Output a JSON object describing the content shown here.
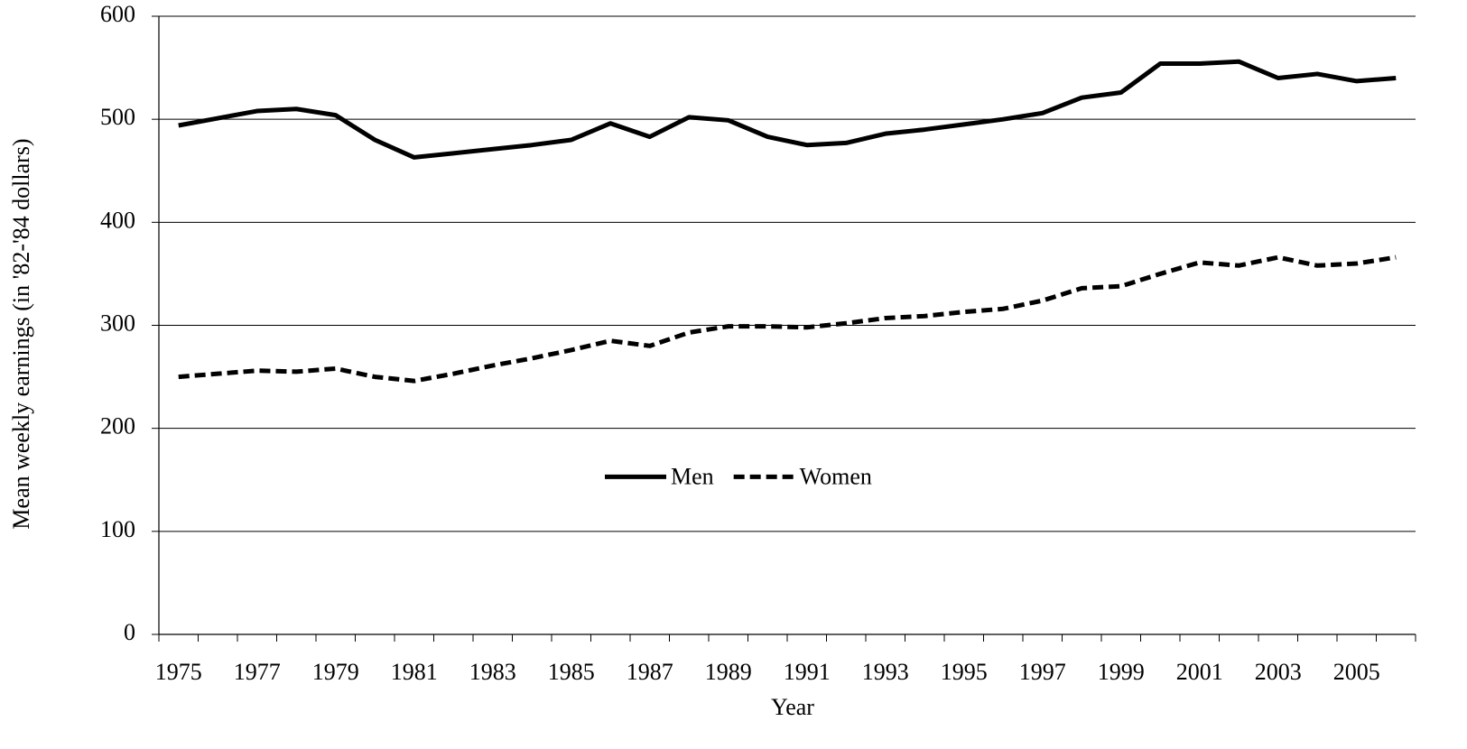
{
  "chart_data": {
    "type": "line",
    "x_label": "Year",
    "y_label": "Mean weekly earnings (in '82-'84 dollars)",
    "categories": [
      "1975",
      null,
      "1977",
      null,
      "1979",
      null,
      "1981",
      null,
      "1983",
      null,
      "1985",
      null,
      "1987",
      null,
      "1989",
      null,
      "1991",
      null,
      "1993",
      null,
      "1995",
      null,
      "1997",
      null,
      "1999",
      null,
      "2001",
      null,
      "2003",
      null,
      "2005",
      null
    ],
    "series": [
      {
        "name": "Men",
        "color": "#000000",
        "line_style": "solid",
        "values": [
          494,
          501,
          508,
          510,
          504,
          480,
          463,
          467,
          471,
          475,
          480,
          496,
          483,
          502,
          499,
          483,
          475,
          477,
          486,
          490,
          495,
          500,
          506,
          521,
          526,
          554,
          554,
          556,
          540,
          544,
          537,
          540
        ]
      },
      {
        "name": "Women",
        "color": "#000000",
        "line_style": "dashed",
        "values": [
          250,
          253,
          256,
          255,
          258,
          250,
          246,
          253,
          261,
          268,
          276,
          285,
          280,
          293,
          299,
          299,
          298,
          302,
          307,
          309,
          313,
          316,
          324,
          336,
          338,
          350,
          361,
          358,
          366,
          358,
          360,
          366
        ]
      }
    ],
    "ylim": [
      0,
      600
    ],
    "yticks": [
      0,
      100,
      200,
      300,
      400,
      500,
      600
    ],
    "grid": true,
    "legend": "center"
  }
}
